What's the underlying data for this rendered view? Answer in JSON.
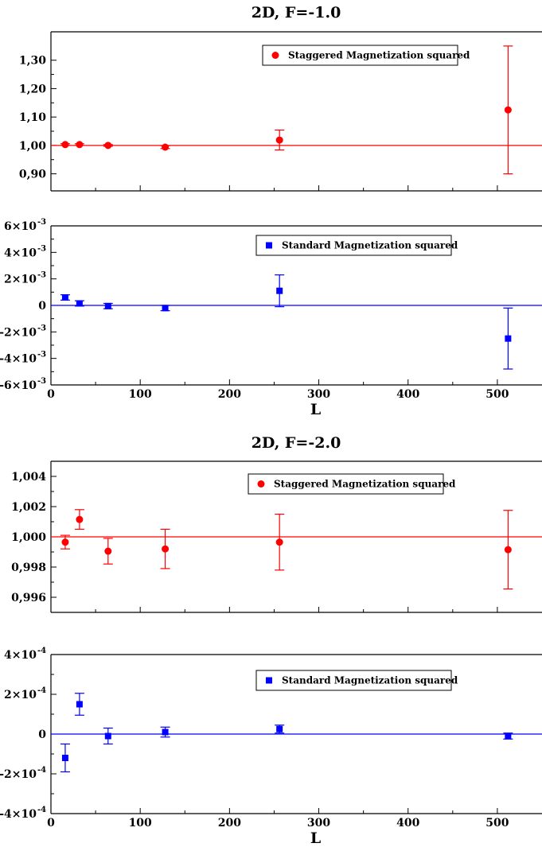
{
  "figure": {
    "sections": [
      {
        "title": "2D, F=-1.0",
        "xlabel": "L"
      },
      {
        "title": "2D, F=-2.0",
        "xlabel": "L"
      }
    ]
  },
  "chart_data": [
    {
      "type": "scatter",
      "title": "2D, F=-1.0",
      "xlabel": "",
      "ylabel": "",
      "xlim": [
        0,
        550
      ],
      "ylim": [
        0.84,
        1.4
      ],
      "yticks": [
        0.9,
        1.0,
        1.1,
        1.2,
        1.3
      ],
      "ytick_labels": [
        "0,90",
        "1,00",
        "1,10",
        "1,20",
        "1,30"
      ],
      "xticks": [
        0,
        100,
        200,
        300,
        400,
        500
      ],
      "xtick_labels": [],
      "reference_line": 1.0,
      "color": "#ff0000",
      "marker": "circle",
      "legend": "Staggered Magnetization squared",
      "legend_position": "top-right",
      "series": [
        {
          "name": "Staggered Magnetization squared",
          "x": [
            16,
            32,
            64,
            128,
            256,
            512
          ],
          "y": [
            1.003,
            1.003,
            1.0,
            0.994,
            1.019,
            1.125
          ],
          "err": [
            0.003,
            0.003,
            0.003,
            0.005,
            0.035,
            0.225
          ]
        }
      ]
    },
    {
      "type": "scatter",
      "title": "",
      "xlabel": "L",
      "ylabel": "",
      "xlim": [
        0,
        550
      ],
      "ylim": [
        -0.006,
        0.006
      ],
      "yticks": [
        -0.006,
        -0.004,
        -0.002,
        0,
        0.002,
        0.004,
        0.006
      ],
      "ytick_labels": [
        [
          "-6×10",
          "-3"
        ],
        [
          "-4×10",
          "-3"
        ],
        [
          "-2×10",
          "-3"
        ],
        [
          "0",
          ""
        ],
        [
          "2×10",
          "-3"
        ],
        [
          "4×10",
          "-3"
        ],
        [
          "6×10",
          "-3"
        ]
      ],
      "xticks": [
        0,
        100,
        200,
        300,
        400,
        500
      ],
      "xtick_labels": [
        "0",
        "100",
        "200",
        "300",
        "400",
        "500"
      ],
      "reference_line": 0,
      "color": "#0000ff",
      "marker": "square",
      "legend": "Standard Magnetization squared",
      "legend_position": "top-right",
      "series": [
        {
          "name": "Standard Magnetization squared",
          "x": [
            16,
            32,
            64,
            128,
            256,
            512
          ],
          "y": [
            0.0006,
            0.00015,
            -5e-05,
            -0.0002,
            0.0011,
            -0.0025
          ],
          "err": [
            0.0002,
            0.0002,
            0.0002,
            0.0002,
            0.0012,
            0.0023
          ]
        }
      ]
    },
    {
      "type": "scatter",
      "title": "2D, F=-2.0",
      "xlabel": "",
      "ylabel": "",
      "xlim": [
        0,
        550
      ],
      "ylim": [
        0.995,
        1.005
      ],
      "yticks": [
        0.996,
        0.998,
        1.0,
        1.002,
        1.004
      ],
      "ytick_labels": [
        "0,996",
        "0,998",
        "1,000",
        "1,002",
        "1,004"
      ],
      "xticks": [
        0,
        100,
        200,
        300,
        400,
        500
      ],
      "xtick_labels": [],
      "reference_line": 1.0,
      "color": "#ff0000",
      "marker": "circle",
      "legend": "Staggered Magnetization squared",
      "legend_position": "top-right",
      "series": [
        {
          "name": "Staggered Magnetization squared",
          "x": [
            16,
            32,
            64,
            128,
            256,
            512
          ],
          "y": [
            0.99965,
            1.00115,
            0.99905,
            0.9992,
            0.99965,
            0.99915
          ],
          "err": [
            0.00045,
            0.00065,
            0.00085,
            0.0013,
            0.00185,
            0.0026
          ]
        }
      ]
    },
    {
      "type": "scatter",
      "title": "",
      "xlabel": "L",
      "ylabel": "",
      "xlim": [
        0,
        550
      ],
      "ylim": [
        -0.0004,
        0.0004
      ],
      "yticks": [
        -0.0004,
        -0.0002,
        0,
        0.0002,
        0.0004
      ],
      "ytick_labels": [
        [
          "-4×10",
          "-4"
        ],
        [
          "-2×10",
          "-4"
        ],
        [
          "0",
          ""
        ],
        [
          "2×10",
          "-4"
        ],
        [
          "4×10",
          "-4"
        ]
      ],
      "xticks": [
        0,
        100,
        200,
        300,
        400,
        500
      ],
      "xtick_labels": [
        "0",
        "100",
        "200",
        "300",
        "400",
        "500"
      ],
      "reference_line": 0,
      "color": "#0000ff",
      "marker": "square",
      "legend": "Standard Magnetization squared",
      "legend_position": "top-right",
      "series": [
        {
          "name": "Standard Magnetization squared",
          "x": [
            16,
            32,
            64,
            128,
            256,
            512
          ],
          "y": [
            -0.00012,
            0.00015,
            -1e-05,
            1e-05,
            2.5e-05,
            -1e-05
          ],
          "err": [
            7e-05,
            5.5e-05,
            4e-05,
            2.5e-05,
            2e-05,
            1.5e-05
          ]
        }
      ]
    }
  ]
}
